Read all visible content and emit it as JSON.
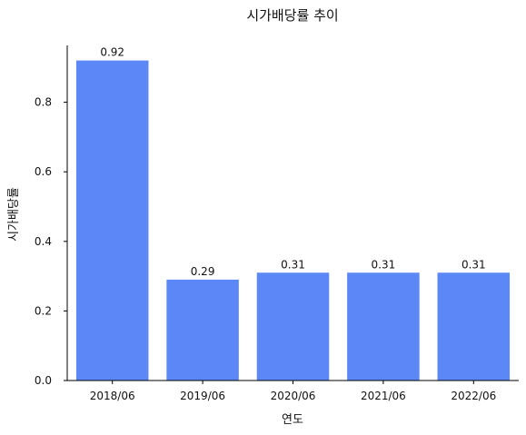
{
  "chart_data": {
    "type": "bar",
    "title": "시가배당률 추이",
    "xlabel": "연도",
    "ylabel": "시가배당률",
    "categories": [
      "2018/06",
      "2019/06",
      "2020/06",
      "2021/06",
      "2022/06"
    ],
    "values": [
      0.92,
      0.29,
      0.31,
      0.31,
      0.31
    ],
    "value_labels": [
      "0.92",
      "0.29",
      "0.31",
      "0.31",
      "0.31"
    ],
    "ylim": [
      0,
      0.966
    ],
    "yticks": [
      0.0,
      0.2,
      0.4,
      0.6,
      0.8
    ],
    "ytick_labels": [
      "0.0",
      "0.2",
      "0.4",
      "0.6",
      "0.8"
    ],
    "bar_color": "#5b87f7",
    "grid": false,
    "legend": "none"
  }
}
